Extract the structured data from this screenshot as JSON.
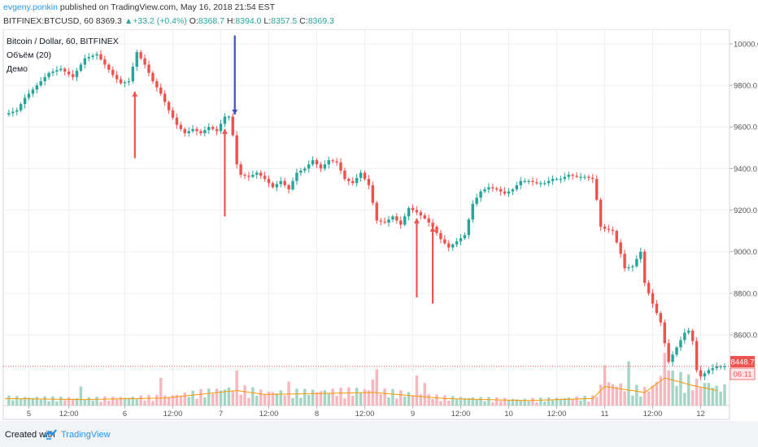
{
  "header": {
    "author": "evgeny.ponkin",
    "published_text": "published on TradingView.com, May 16, 2018 21:54 EST",
    "symbol": "BITFINEX:BTCUSD, 60",
    "last": "8369.3",
    "change": "+33.2 (+0.4%)",
    "o_label": "O:",
    "o_value": "8368.7",
    "h_label": "H:",
    "h_value": "8394.0",
    "l_label": "L:",
    "l_value": "8357.5",
    "c_label": "C:",
    "c_value": "8369.3"
  },
  "legend": {
    "title": "Bitcoin / Dollar, 60, BITFINEX",
    "volume": "Объём (20)",
    "demo": "Демо"
  },
  "footer": {
    "created_with": "Created with",
    "brand": "TradingView"
  },
  "colors": {
    "up": "#26a69a",
    "down": "#ef5350",
    "volume_up": "#a5d6c4",
    "volume_down": "#f7b7be",
    "volume_ma": "#ff9800",
    "arrow_red": "#ef5350",
    "arrow_blue": "#3f51b5",
    "grid": "#eef0f3"
  },
  "chart_data": {
    "type": "candlestick",
    "title": "Bitcoin / Dollar, 60, BITFINEX",
    "ylim": [
      8260,
      10070
    ],
    "y_ticks": [
      8600,
      8800,
      9000,
      9200,
      9400,
      9600,
      9800,
      10000
    ],
    "y_tick_labels": [
      "8600.0",
      "8800.0",
      "9000.0",
      "9200.0",
      "9400.0",
      "9600.0",
      "9800.0",
      "10000.0"
    ],
    "x_range": [
      0,
      180
    ],
    "x_ticks": [
      {
        "x": 6,
        "label": "5"
      },
      {
        "x": 16,
        "label": "12:00"
      },
      {
        "x": 30,
        "label": "6"
      },
      {
        "x": 42,
        "label": "12:00"
      },
      {
        "x": 54,
        "label": "7"
      },
      {
        "x": 66,
        "label": "12:00"
      },
      {
        "x": 78,
        "label": "8"
      },
      {
        "x": 90,
        "label": "12:00"
      },
      {
        "x": 102,
        "label": "9"
      },
      {
        "x": 114,
        "label": "12:00"
      },
      {
        "x": 126,
        "label": "10"
      },
      {
        "x": 138,
        "label": "12:00"
      },
      {
        "x": 150,
        "label": "11"
      },
      {
        "x": 162,
        "label": "12:00"
      },
      {
        "x": 174,
        "label": "12"
      }
    ],
    "price_label": "8448.7",
    "countdown_label": "06:11",
    "current_price": 8448.7,
    "close_path": [
      [
        0,
        9660
      ],
      [
        3,
        9680
      ],
      [
        5,
        9740
      ],
      [
        8,
        9800
      ],
      [
        11,
        9860
      ],
      [
        14,
        9880
      ],
      [
        17,
        9840
      ],
      [
        20,
        9930
      ],
      [
        23,
        9950
      ],
      [
        25,
        9900
      ],
      [
        27,
        9850
      ],
      [
        29,
        9810
      ],
      [
        31,
        9820
      ],
      [
        33,
        9960
      ],
      [
        35,
        9900
      ],
      [
        37,
        9820
      ],
      [
        39,
        9760
      ],
      [
        41,
        9680
      ],
      [
        43,
        9610
      ],
      [
        45,
        9570
      ],
      [
        47,
        9590
      ],
      [
        49,
        9570
      ],
      [
        51,
        9600
      ],
      [
        53,
        9580
      ],
      [
        55,
        9650
      ],
      [
        56,
        9650
      ],
      [
        57,
        9560
      ],
      [
        58,
        9420
      ],
      [
        59,
        9370
      ],
      [
        61,
        9360
      ],
      [
        63,
        9380
      ],
      [
        65,
        9350
      ],
      [
        67,
        9310
      ],
      [
        69,
        9340
      ],
      [
        71,
        9300
      ],
      [
        73,
        9380
      ],
      [
        75,
        9400
      ],
      [
        77,
        9440
      ],
      [
        79,
        9400
      ],
      [
        81,
        9440
      ],
      [
        83,
        9430
      ],
      [
        85,
        9350
      ],
      [
        87,
        9330
      ],
      [
        89,
        9380
      ],
      [
        91,
        9320
      ],
      [
        93,
        9150
      ],
      [
        95,
        9140
      ],
      [
        97,
        9170
      ],
      [
        99,
        9130
      ],
      [
        101,
        9210
      ],
      [
        103,
        9190
      ],
      [
        105,
        9160
      ],
      [
        107,
        9120
      ],
      [
        109,
        9060
      ],
      [
        111,
        9020
      ],
      [
        113,
        9050
      ],
      [
        115,
        9080
      ],
      [
        117,
        9230
      ],
      [
        119,
        9290
      ],
      [
        121,
        9310
      ],
      [
        123,
        9300
      ],
      [
        125,
        9280
      ],
      [
        127,
        9300
      ],
      [
        129,
        9340
      ],
      [
        131,
        9340
      ],
      [
        133,
        9330
      ],
      [
        135,
        9330
      ],
      [
        137,
        9350
      ],
      [
        139,
        9350
      ],
      [
        141,
        9370
      ],
      [
        143,
        9360
      ],
      [
        145,
        9360
      ],
      [
        147,
        9350
      ],
      [
        148,
        9250
      ],
      [
        149,
        9120
      ],
      [
        150,
        9110
      ],
      [
        152,
        9100
      ],
      [
        154,
        8990
      ],
      [
        155,
        8920
      ],
      [
        157,
        8930
      ],
      [
        159,
        9000
      ],
      [
        160,
        8850
      ],
      [
        162,
        8750
      ],
      [
        164,
        8660
      ],
      [
        165,
        8560
      ],
      [
        166,
        8470
      ],
      [
        168,
        8540
      ],
      [
        170,
        8610
      ],
      [
        171,
        8620
      ],
      [
        172,
        8570
      ],
      [
        173,
        8430
      ],
      [
        174,
        8400
      ],
      [
        176,
        8430
      ],
      [
        178,
        8449
      ]
    ],
    "volume_path": [
      [
        0,
        14
      ],
      [
        20,
        12
      ],
      [
        40,
        15
      ],
      [
        58,
        30
      ],
      [
        65,
        22
      ],
      [
        92,
        26
      ],
      [
        110,
        14
      ],
      [
        130,
        10
      ],
      [
        147,
        14
      ],
      [
        150,
        38
      ],
      [
        160,
        26
      ],
      [
        165,
        55
      ],
      [
        172,
        40
      ],
      [
        178,
        30
      ]
    ],
    "volume_spikes": [
      {
        "x": 19,
        "v": 38
      },
      {
        "x": 39,
        "v": 55
      },
      {
        "x": 58,
        "v": 70
      },
      {
        "x": 71,
        "v": 48
      },
      {
        "x": 92,
        "v": 52
      },
      {
        "x": 93,
        "v": 72
      },
      {
        "x": 103,
        "v": 60
      },
      {
        "x": 105,
        "v": 45
      },
      {
        "x": 150,
        "v": 80
      },
      {
        "x": 156,
        "v": 88
      },
      {
        "x": 162,
        "v": 40
      },
      {
        "x": 165,
        "v": 105
      },
      {
        "x": 166,
        "v": 70
      },
      {
        "x": 171,
        "v": 62
      },
      {
        "x": 176,
        "v": 45
      }
    ],
    "volume_max": 110,
    "arrows": [
      {
        "x": 32.5,
        "from": 9450,
        "to": 9770,
        "color": "red"
      },
      {
        "x": 55,
        "from": 9170,
        "to": 9590,
        "color": "red"
      },
      {
        "x": 57.5,
        "from": 10040,
        "to": 9660,
        "color": "blue"
      },
      {
        "x": 103,
        "from": 8780,
        "to": 9160,
        "color": "red"
      },
      {
        "x": 107,
        "from": 8750,
        "to": 9120,
        "color": "red"
      }
    ]
  }
}
